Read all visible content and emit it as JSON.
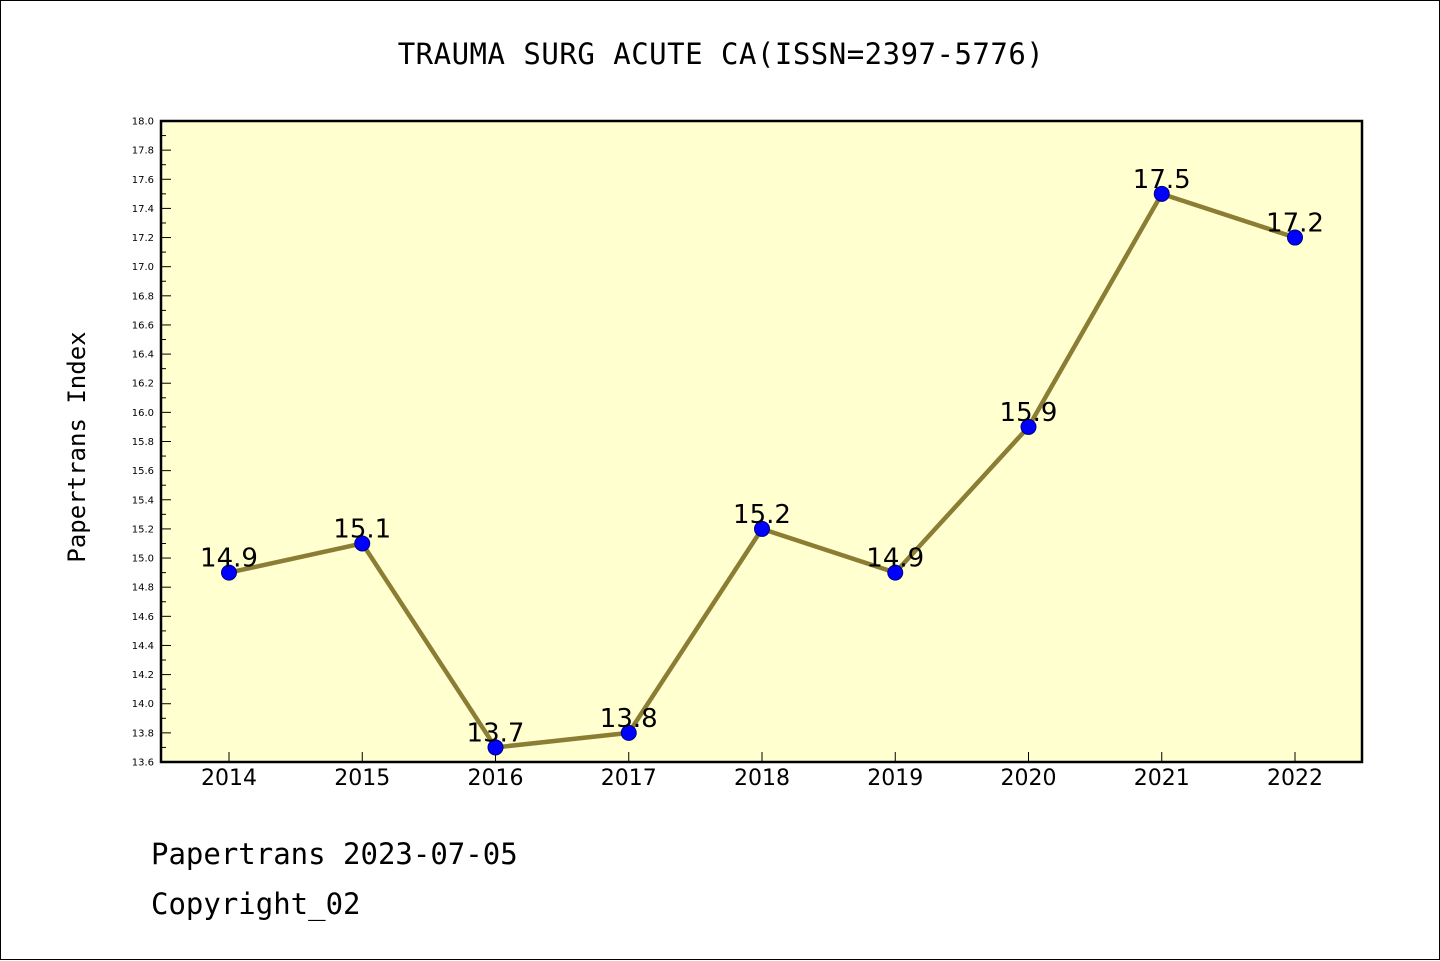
{
  "colors": {
    "plot_background": "#ffffd0",
    "line": "#8b7d33",
    "marker_fill": "#0000ff",
    "marker_edge": "#000080",
    "axis": "#000000"
  },
  "footer": {
    "line1": "Papertrans 2023-07-05",
    "line2": "Copyright_02"
  },
  "chart_data": {
    "type": "line",
    "title": "TRAUMA SURG ACUTE CA(ISSN=2397-5776)",
    "xlabel": "",
    "ylabel": "Papertrans Index",
    "categories": [
      "2014",
      "2015",
      "2016",
      "2017",
      "2018",
      "2019",
      "2020",
      "2021",
      "2022"
    ],
    "series": [
      {
        "values": [
          14.9,
          15.1,
          13.7,
          13.8,
          15.2,
          14.9,
          15.9,
          17.5,
          17.2
        ]
      }
    ],
    "data_labels": [
      "14.9",
      "15.1",
      "13.7",
      "13.8",
      "15.2",
      "14.9",
      "15.9",
      "17.5",
      "17.2"
    ],
    "ylim": [
      13.6,
      18.0
    ],
    "yticks": [
      "13.6",
      "13.8",
      "14.0",
      "14.2",
      "14.4",
      "14.6",
      "14.8",
      "15.0",
      "15.2",
      "15.4",
      "15.6",
      "15.8",
      "16.0",
      "16.2",
      "16.4",
      "16.6",
      "16.8",
      "17.0",
      "17.2",
      "17.4",
      "17.6",
      "17.8",
      "18.0"
    ],
    "grid": false,
    "legend": "none"
  }
}
